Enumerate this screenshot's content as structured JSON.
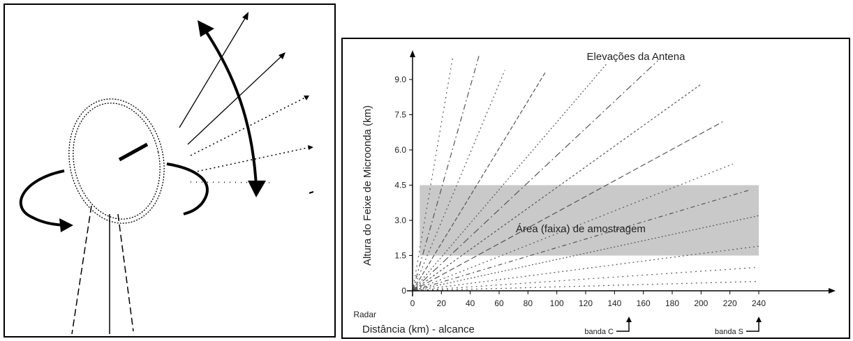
{
  "chart_data": {
    "type": "line",
    "title": "Elevações da Antena",
    "xlabel": "Distância (km) - alcance",
    "ylabel": "Altura do Feixe  de Microonda (km)",
    "origin_label": "Radar",
    "x_ticks": [
      "0",
      "20",
      "40",
      "60",
      "80",
      "100",
      "120",
      "140",
      "160",
      "180",
      "200",
      "220",
      "240"
    ],
    "y_ticks": [
      "0",
      "1.5",
      "3.0",
      "4.5",
      "6.0",
      "7.5",
      "9.0"
    ],
    "xlim": [
      0,
      240
    ],
    "ylim": [
      0,
      9.0
    ],
    "sampling_band": {
      "label": "Área  (faixa) de amostragem",
      "x_range": [
        5,
        240
      ],
      "y_range": [
        1.5,
        4.5
      ]
    },
    "range_markers": [
      {
        "label": "banda C",
        "x": 150
      },
      {
        "label": "banda S",
        "x": 240
      }
    ],
    "beam_endpoints": [
      [
        28,
        10.0
      ],
      [
        46,
        10.0
      ],
      [
        64,
        9.4
      ],
      [
        92,
        9.3
      ],
      [
        135,
        9.7
      ],
      [
        170,
        9.8
      ],
      [
        200,
        8.8
      ],
      [
        215,
        7.2
      ],
      [
        222,
        5.4
      ],
      [
        234,
        4.3
      ],
      [
        240,
        3.2
      ],
      [
        240,
        1.9
      ],
      [
        240,
        1.0
      ],
      [
        240,
        0.4
      ]
    ],
    "grid": false,
    "legend": "none"
  }
}
